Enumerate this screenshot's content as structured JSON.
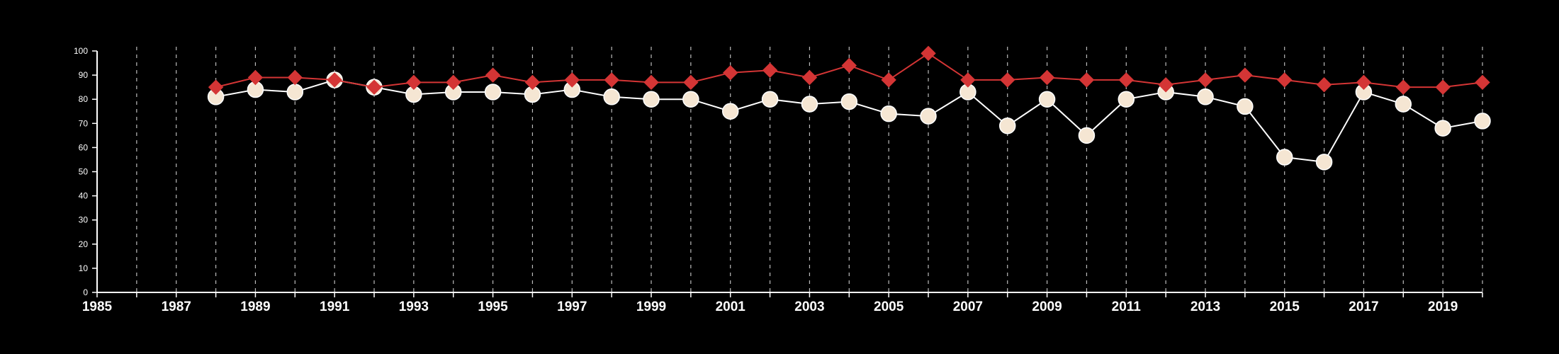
{
  "chart_data": {
    "type": "line",
    "title": "",
    "xlabel": "",
    "ylabel": "",
    "xlim": [
      1985,
      2020
    ],
    "ylim": [
      0,
      100
    ],
    "x_ticks": [
      "1985",
      "1987",
      "1989",
      "1991",
      "1993",
      "1995",
      "1997",
      "1999",
      "2001",
      "2003",
      "2005",
      "2007",
      "2009",
      "2011",
      "2013",
      "2015",
      "2017",
      "2019"
    ],
    "y_ticks": [
      "0",
      "10",
      "20",
      "30",
      "40",
      "50",
      "60",
      "70",
      "80",
      "90",
      "100"
    ],
    "vertical_gridlines_years": [
      1986,
      1987,
      1988,
      1989,
      1990,
      1991,
      1992,
      1993,
      1994,
      1995,
      1996,
      1997,
      1998,
      1999,
      2000,
      2001,
      2002,
      2003,
      2004,
      2005,
      2006,
      2007,
      2008,
      2009,
      2010,
      2011,
      2012,
      2013,
      2014,
      2015,
      2016,
      2017,
      2018,
      2019,
      2020
    ],
    "grid": "vertical dashed",
    "legend": "none",
    "x": [
      1988,
      1989,
      1990,
      1991,
      1992,
      1993,
      1994,
      1995,
      1996,
      1997,
      1998,
      1999,
      2000,
      2001,
      2002,
      2003,
      2004,
      2005,
      2006,
      2007,
      2008,
      2009,
      2010,
      2011,
      2012,
      2013,
      2014,
      2015,
      2016,
      2017,
      2018,
      2019,
      2020
    ],
    "series": [
      {
        "marker": "circle",
        "color": "#ffffff",
        "fill": "#f5e6d3",
        "values": [
          81,
          84,
          83,
          88,
          85,
          82,
          83,
          83,
          82,
          84,
          81,
          80,
          80,
          75,
          80,
          78,
          79,
          74,
          73,
          83,
          69,
          80,
          65,
          80,
          83,
          81,
          77,
          56,
          54,
          83,
          78,
          68,
          71
        ]
      },
      {
        "marker": "diamond",
        "color": "#d43535",
        "fill": "#d43535",
        "values": [
          85,
          89,
          89,
          88,
          85,
          87,
          87,
          90,
          87,
          88,
          88,
          87,
          87,
          91,
          92,
          89,
          94,
          88,
          99,
          88,
          88,
          89,
          88,
          88,
          86,
          88,
          90,
          88,
          86,
          87,
          85,
          85,
          87
        ]
      }
    ]
  }
}
